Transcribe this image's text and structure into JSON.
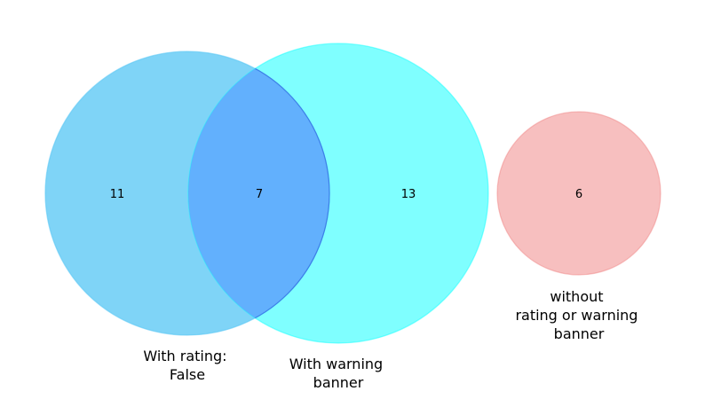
{
  "sets": [
    {
      "id": "rating",
      "label_lines": [
        "With rating:",
        "False"
      ],
      "color": "#5bc8f5"
    },
    {
      "id": "warning",
      "label_lines": [
        "With warning",
        "banner"
      ],
      "color": "#00ffff"
    },
    {
      "id": "neither",
      "label_lines": [
        "without",
        "rating or warning",
        "banner"
      ],
      "color": "#f08080"
    }
  ],
  "overlap_color": "#7f7fff",
  "counts": {
    "rating_only": "11",
    "both": "7",
    "warning_only": "13",
    "neither": "6"
  }
}
